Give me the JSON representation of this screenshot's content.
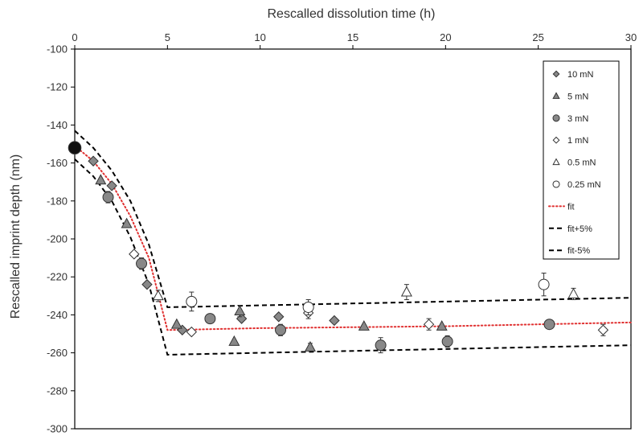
{
  "chart_data": {
    "type": "scatter",
    "xlabel": "Rescalled dissolution time (h)",
    "ylabel": "Rescalled imprint depth (nm)",
    "xlim": [
      0,
      30
    ],
    "ylim": [
      -300,
      -100
    ],
    "x_ticks": [
      "0",
      "5",
      "10",
      "15",
      "20",
      "25",
      "30"
    ],
    "y_ticks": [
      "-100",
      "-120",
      "-140",
      "-160",
      "-180",
      "-200",
      "-220",
      "-240",
      "-260",
      "-280",
      "-300"
    ],
    "x_axis_position": "top",
    "grid": false,
    "legend_position": "top-right",
    "series": [
      {
        "name": "10 mN",
        "marker": "diamond",
        "fill": "#888888",
        "points": [
          {
            "x": 1.0,
            "y": -159,
            "err": 0
          },
          {
            "x": 2.0,
            "y": -172,
            "err": 0
          },
          {
            "x": 3.9,
            "y": -224,
            "err": 0
          },
          {
            "x": 5.8,
            "y": -248,
            "err": 0
          },
          {
            "x": 9.0,
            "y": -242,
            "err": 0
          },
          {
            "x": 11.0,
            "y": -241,
            "err": 0
          },
          {
            "x": 14.0,
            "y": -243,
            "err": 0
          }
        ]
      },
      {
        "name": "5 mN",
        "marker": "triangle",
        "fill": "#888888",
        "points": [
          {
            "x": 1.4,
            "y": -169,
            "err": 0
          },
          {
            "x": 2.8,
            "y": -192,
            "err": 0
          },
          {
            "x": 5.5,
            "y": -245,
            "err": 0
          },
          {
            "x": 8.6,
            "y": -254,
            "err": 0
          },
          {
            "x": 8.9,
            "y": -238,
            "err": 3
          },
          {
            "x": 12.7,
            "y": -257,
            "err": 2
          },
          {
            "x": 15.6,
            "y": -246,
            "err": 0
          },
          {
            "x": 19.8,
            "y": -246,
            "err": 0
          }
        ]
      },
      {
        "name": "3 mN",
        "marker": "circle",
        "fill": "#888888",
        "points": [
          {
            "x": 0.0,
            "y": -152,
            "err": 0
          },
          {
            "x": 1.8,
            "y": -178,
            "err": 3
          },
          {
            "x": 3.6,
            "y": -213,
            "err": 3
          },
          {
            "x": 7.3,
            "y": -242,
            "err": 0
          },
          {
            "x": 11.1,
            "y": -248,
            "err": 3
          },
          {
            "x": 16.5,
            "y": -256,
            "err": 4
          },
          {
            "x": 20.1,
            "y": -254,
            "err": 3
          },
          {
            "x": 25.6,
            "y": -245,
            "err": 0
          }
        ]
      },
      {
        "name": "1 mN",
        "marker": "diamond",
        "fill": "#ffffff",
        "points": [
          {
            "x": 3.2,
            "y": -208,
            "err": 0
          },
          {
            "x": 6.3,
            "y": -249,
            "err": 0
          },
          {
            "x": 12.6,
            "y": -239,
            "err": 3
          },
          {
            "x": 19.1,
            "y": -245,
            "err": 3
          },
          {
            "x": 28.5,
            "y": -248,
            "err": 3
          }
        ]
      },
      {
        "name": "0.5 mN",
        "marker": "triangle",
        "fill": "#ffffff",
        "points": [
          {
            "x": 4.5,
            "y": -230,
            "err": 3
          },
          {
            "x": 17.9,
            "y": -228,
            "err": 4
          },
          {
            "x": 26.9,
            "y": -229,
            "err": 3
          }
        ]
      },
      {
        "name": "0.25 mN",
        "marker": "circle",
        "fill": "#ffffff",
        "points": [
          {
            "x": 6.3,
            "y": -233,
            "err": 5
          },
          {
            "x": 12.6,
            "y": -236,
            "err": 4
          },
          {
            "x": 25.3,
            "y": -224,
            "err": 6
          }
        ]
      }
    ],
    "lines": [
      {
        "name": "fit",
        "color": "#e03030",
        "style": "dotted",
        "points": [
          [
            0,
            -151
          ],
          [
            1,
            -159
          ],
          [
            2,
            -171
          ],
          [
            3,
            -188
          ],
          [
            4,
            -210
          ],
          [
            5,
            -248
          ],
          [
            10,
            -247
          ],
          [
            20,
            -246
          ],
          [
            30,
            -244
          ]
        ]
      },
      {
        "name": "fit+5%",
        "color": "#000000",
        "style": "dashed",
        "points": [
          [
            0,
            -143
          ],
          [
            1,
            -152
          ],
          [
            2,
            -164
          ],
          [
            3,
            -180
          ],
          [
            4,
            -203
          ],
          [
            5,
            -236
          ],
          [
            10,
            -235
          ],
          [
            20,
            -233
          ],
          [
            30,
            -231
          ]
        ]
      },
      {
        "name": "fit-5%",
        "color": "#000000",
        "style": "dashed",
        "points": [
          [
            0,
            -158
          ],
          [
            1,
            -167
          ],
          [
            2,
            -180
          ],
          [
            3,
            -199
          ],
          [
            4,
            -224
          ],
          [
            5,
            -261
          ],
          [
            10,
            -260
          ],
          [
            20,
            -258
          ],
          [
            30,
            -256
          ]
        ]
      }
    ]
  }
}
